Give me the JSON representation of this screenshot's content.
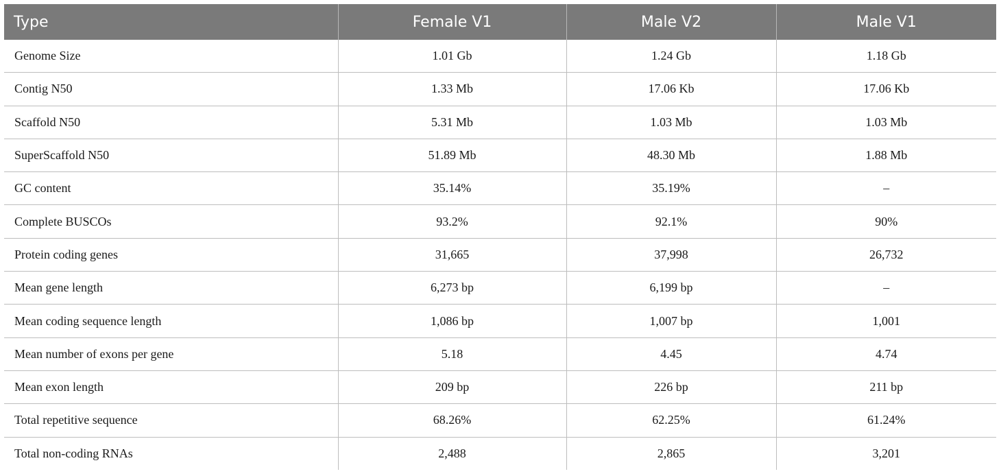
{
  "table": {
    "headers": [
      "Type",
      "Female V1",
      "Male V2",
      "Male V1"
    ],
    "rows": [
      [
        "Genome Size",
        "1.01 Gb",
        "1.24 Gb",
        "1.18 Gb"
      ],
      [
        "Contig N50",
        "1.33 Mb",
        "17.06 Kb",
        "17.06 Kb"
      ],
      [
        "Scaffold N50",
        "5.31 Mb",
        "1.03 Mb",
        "1.03 Mb"
      ],
      [
        "SuperScaffold N50",
        "51.89 Mb",
        "48.30 Mb",
        "1.88 Mb"
      ],
      [
        "GC content",
        "35.14%",
        "35.19%",
        "–"
      ],
      [
        "Complete BUSCOs",
        "93.2%",
        "92.1%",
        "90%"
      ],
      [
        "Protein coding genes",
        "31,665",
        "37,998",
        "26,732"
      ],
      [
        "Mean gene length",
        "6,273 bp",
        "6,199 bp",
        "–"
      ],
      [
        "Mean coding sequence length",
        "1,086 bp",
        "1,007 bp",
        "1,001"
      ],
      [
        "Mean number of exons per gene",
        "5.18",
        "4.45",
        "4.74"
      ],
      [
        "Mean exon length",
        "209 bp",
        "226 bp",
        "211 bp"
      ],
      [
        "Total repetitive sequence",
        "68.26%",
        "62.25%",
        "61.24%"
      ],
      [
        "Total non-coding RNAs",
        "2,488",
        "2,865",
        "3,201"
      ]
    ]
  },
  "colors": {
    "header_bg": "#7a7a7a",
    "header_text": "#ffffff",
    "grid": "#bdbdbd"
  }
}
